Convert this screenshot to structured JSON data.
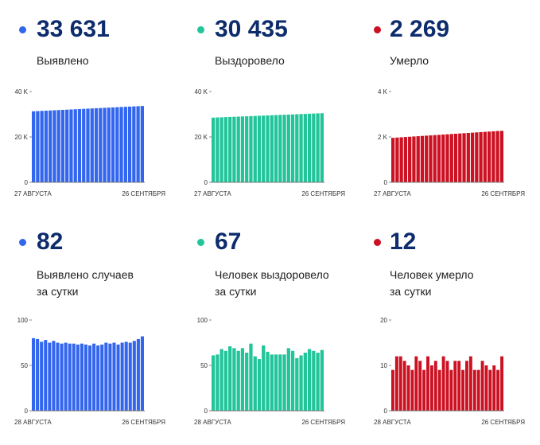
{
  "panels": [
    {
      "value": "33 631",
      "label_lines": [
        "Выявлено"
      ],
      "color": "#3366ee",
      "chart_data": {
        "type": "bar",
        "series_name": "Выявлено",
        "ylim": [
          0,
          40000
        ],
        "yticks": [
          0,
          20000,
          40000
        ],
        "ytick_labels": [
          "0",
          "20 K",
          "40 K"
        ],
        "xlabel_start": "27 АВГУСТА",
        "xlabel_end": "26 СЕНТЯБРЯ",
        "values": [
          31300,
          31390,
          31480,
          31570,
          31660,
          31750,
          31840,
          31930,
          32020,
          32110,
          32200,
          32290,
          32380,
          32470,
          32560,
          32650,
          32740,
          32830,
          32920,
          33010,
          33100,
          33190,
          33280,
          33370,
          33460,
          33550,
          33631
        ]
      }
    },
    {
      "value": "30 435",
      "label_lines": [
        "Выздоровело"
      ],
      "color": "#22c49a",
      "chart_data": {
        "type": "bar",
        "series_name": "Выздоровело",
        "ylim": [
          0,
          40000
        ],
        "yticks": [
          0,
          20000,
          40000
        ],
        "ytick_labels": [
          "0",
          "20 K",
          "40 K"
        ],
        "xlabel_start": "27 АВГУСТА",
        "xlabel_end": "26 СЕНТЯБРЯ",
        "values": [
          28500,
          28575,
          28650,
          28725,
          28800,
          28875,
          28950,
          29025,
          29100,
          29175,
          29250,
          29325,
          29400,
          29475,
          29550,
          29625,
          29700,
          29775,
          29850,
          29925,
          30000,
          30075,
          30150,
          30225,
          30300,
          30375,
          30435
        ]
      }
    },
    {
      "value": "2 269",
      "label_lines": [
        "Умерло"
      ],
      "color": "#cc1122",
      "chart_data": {
        "type": "bar",
        "series_name": "Умерло",
        "ylim": [
          0,
          4000
        ],
        "yticks": [
          0,
          2000,
          4000
        ],
        "ytick_labels": [
          "0",
          "2 K",
          "4 K"
        ],
        "xlabel_start": "27 АВГУСТА",
        "xlabel_end": "26 СЕНТЯБРЯ",
        "values": [
          1960,
          1972,
          1984,
          1996,
          2008,
          2020,
          2032,
          2044,
          2056,
          2068,
          2080,
          2092,
          2104,
          2116,
          2128,
          2140,
          2152,
          2164,
          2176,
          2188,
          2200,
          2212,
          2224,
          2236,
          2248,
          2260,
          2269
        ]
      }
    },
    {
      "value": "82",
      "label_lines": [
        "Выявлено случаев",
        "за сутки"
      ],
      "color": "#3366ee",
      "chart_data": {
        "type": "bar",
        "series_name": "Выявлено случаев за сутки",
        "ylim": [
          0,
          100
        ],
        "yticks": [
          0,
          50,
          100
        ],
        "ytick_labels": [
          "0",
          "50",
          "100"
        ],
        "xlabel_start": "28 АВГУСТА",
        "xlabel_end": "26 СЕНТЯБРЯ",
        "values": [
          80,
          79,
          76,
          78,
          75,
          77,
          75,
          74,
          75,
          74,
          74,
          73,
          74,
          73,
          72,
          74,
          72,
          73,
          75,
          74,
          75,
          73,
          75,
          76,
          75,
          77,
          79,
          82
        ]
      }
    },
    {
      "value": "67",
      "label_lines": [
        "Человек выздоровело",
        "за сутки"
      ],
      "color": "#22c49a",
      "chart_data": {
        "type": "bar",
        "series_name": "Человек выздоровело за сутки",
        "ylim": [
          0,
          100
        ],
        "yticks": [
          0,
          50,
          100
        ],
        "ytick_labels": [
          "0",
          "50",
          "100"
        ],
        "xlabel_start": "28 АВГУСТА",
        "xlabel_end": "26 СЕНТЯБРЯ",
        "values": [
          61,
          62,
          68,
          66,
          71,
          69,
          66,
          69,
          64,
          74,
          60,
          57,
          72,
          65,
          62,
          62,
          62,
          62,
          69,
          66,
          58,
          61,
          64,
          68,
          66,
          64,
          67
        ]
      }
    },
    {
      "value": "12",
      "label_lines": [
        "Человек умерло",
        "за сутки"
      ],
      "color": "#cc1122",
      "chart_data": {
        "type": "bar",
        "series_name": "Человек умерло за сутки",
        "ylim": [
          0,
          20
        ],
        "yticks": [
          0,
          10,
          20
        ],
        "ytick_labels": [
          "0",
          "10",
          "20"
        ],
        "xlabel_start": "28 АВГУСТА",
        "xlabel_end": "26 СЕНТЯБРЯ",
        "values": [
          9,
          12,
          12,
          11,
          10,
          9,
          12,
          11,
          9,
          12,
          10,
          11,
          9,
          12,
          11,
          9,
          11,
          11,
          9,
          11,
          12,
          9,
          9,
          11,
          10,
          9,
          10,
          9,
          12
        ]
      }
    }
  ]
}
